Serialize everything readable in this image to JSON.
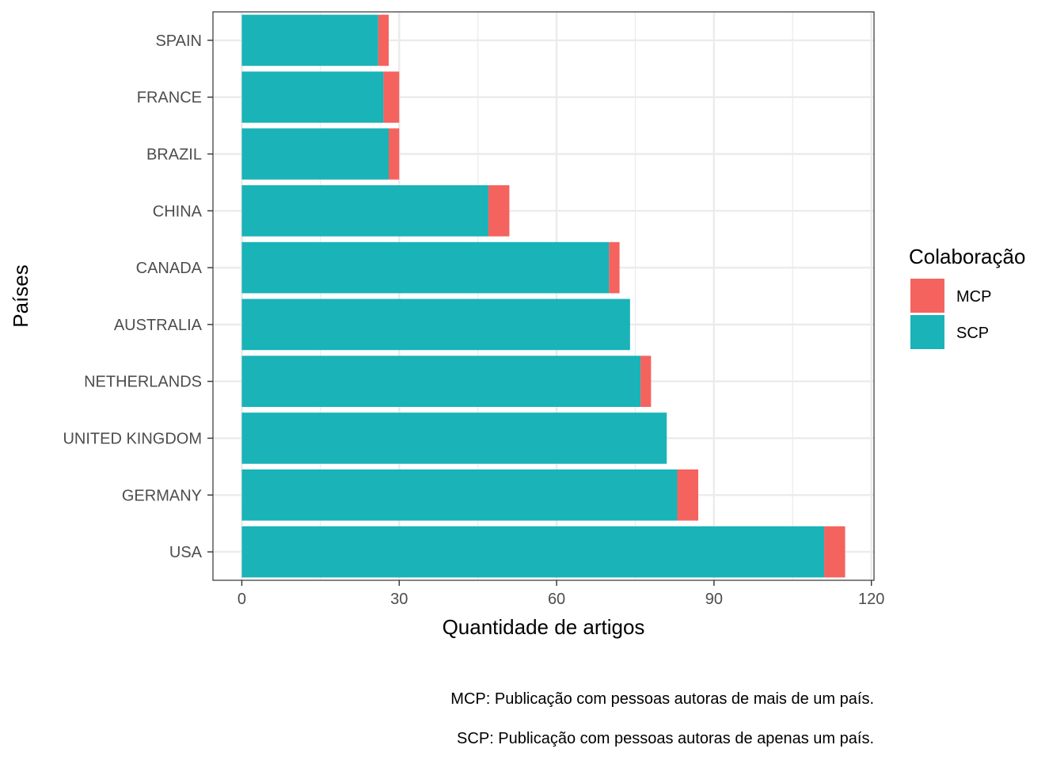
{
  "chart_data": {
    "type": "bar",
    "orientation": "horizontal",
    "stacked": true,
    "categories": [
      "USA",
      "GERMANY",
      "UNITED KINGDOM",
      "NETHERLANDS",
      "AUSTRALIA",
      "CANADA",
      "CHINA",
      "BRAZIL",
      "FRANCE",
      "SPAIN"
    ],
    "series": [
      {
        "name": "SCP",
        "color": "#19B3B8",
        "values": [
          111,
          83,
          81,
          76,
          74,
          70,
          47,
          28,
          27,
          26
        ]
      },
      {
        "name": "MCP",
        "color": "#F5635F",
        "values": [
          4,
          4,
          0,
          2,
          0,
          2,
          4,
          2,
          3,
          2
        ]
      }
    ],
    "xlabel": "Quantidade de artigos",
    "ylabel": "Países",
    "xlim": [
      -5.5,
      120.5
    ],
    "xticks": [
      0,
      30,
      60,
      90,
      120
    ],
    "xtick_labels": [
      "0",
      "30",
      "60",
      "90",
      "120"
    ],
    "grid": true,
    "legend": {
      "title": "Colaboração",
      "position": "right",
      "items": [
        {
          "label": "MCP",
          "color": "#F5635F"
        },
        {
          "label": "SCP",
          "color": "#19B3B8"
        }
      ]
    }
  },
  "captions": [
    "MCP: Publicação com pessoas autoras de mais de um país.",
    "SCP: Publicação com pessoas autoras de apenas um país."
  ]
}
